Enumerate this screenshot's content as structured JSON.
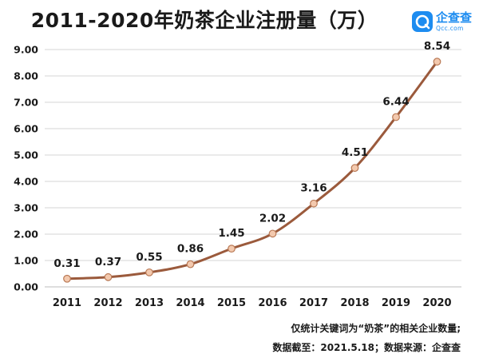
{
  "title": "2011-2020年奶茶企业注册量（万）",
  "brand": {
    "name": "企查查",
    "sub": "Qcc.com",
    "color": "#1d8cf0"
  },
  "notes": {
    "line1": "仅统计关键词为“奶茶”的相关企业数量;",
    "line2": "数据截至：2021.5.18；数据来源：企查查"
  },
  "colors": {
    "line": "#9b5a3c",
    "marker_fill": "#f3c9ae",
    "marker_stroke": "#b97955",
    "grid": "#d6d6d6"
  },
  "chart_data": {
    "type": "line",
    "title": "2011-2020年奶茶企业注册量（万）",
    "categories": [
      "2011",
      "2012",
      "2013",
      "2014",
      "2015",
      "2016",
      "2017",
      "2018",
      "2019",
      "2020"
    ],
    "values": [
      0.31,
      0.37,
      0.55,
      0.86,
      1.45,
      2.02,
      3.16,
      4.51,
      6.44,
      8.54
    ],
    "data_labels": [
      "0.31",
      "0.37",
      "0.55",
      "0.86",
      "1.45",
      "2.02",
      "3.16",
      "4.51",
      "6.44",
      "8.54"
    ],
    "ylim": [
      0,
      9
    ],
    "yticks": [
      "0.00",
      "1.00",
      "2.00",
      "3.00",
      "4.00",
      "5.00",
      "6.00",
      "7.00",
      "8.00",
      "9.00"
    ],
    "grid": true,
    "smooth": true,
    "xlabel": "",
    "ylabel": ""
  }
}
